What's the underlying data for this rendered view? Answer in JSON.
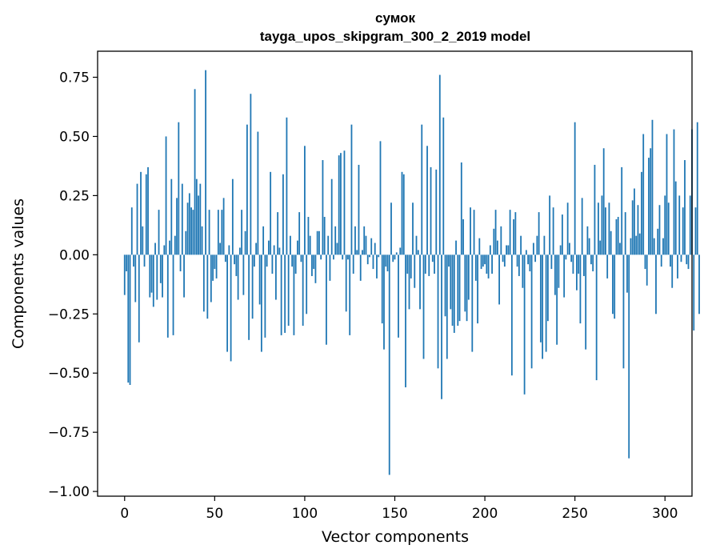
{
  "chart_data": {
    "type": "bar",
    "title": "сумок",
    "subtitle": "tayga_upos_skipgram_300_2_2019 model",
    "xlabel": "Vector components",
    "ylabel": "Components values",
    "xlim": [
      -15,
      315
    ],
    "ylim": [
      -1.02,
      0.86
    ],
    "xticks": [
      0,
      50,
      100,
      150,
      200,
      250,
      300
    ],
    "xtick_labels": [
      "0",
      "50",
      "100",
      "150",
      "200",
      "250",
      "300"
    ],
    "yticks": [
      -1.0,
      -0.75,
      -0.5,
      -0.25,
      0.0,
      0.25,
      0.5,
      0.75
    ],
    "ytick_labels": [
      "−1.00",
      "−0.75",
      "−0.50",
      "−0.25",
      "0.00",
      "0.25",
      "0.50",
      "0.75"
    ],
    "bar_color": "#1f77b4",
    "grid": false,
    "legend": "none",
    "values": [
      -0.17,
      -0.07,
      -0.54,
      -0.55,
      0.2,
      -0.05,
      -0.2,
      0.3,
      -0.37,
      0.35,
      0.12,
      -0.05,
      0.34,
      0.37,
      -0.18,
      -0.16,
      -0.22,
      0.05,
      -0.19,
      0.19,
      -0.12,
      -0.18,
      0.04,
      0.5,
      -0.35,
      0.06,
      0.32,
      -0.34,
      0.08,
      0.24,
      0.56,
      -0.07,
      0.3,
      -0.18,
      0.1,
      0.22,
      0.26,
      0.2,
      0.19,
      0.7,
      0.32,
      0.25,
      0.3,
      0.12,
      -0.24,
      0.78,
      -0.27,
      0.19,
      -0.2,
      -0.11,
      -0.06,
      -0.1,
      0.19,
      0.05,
      0.19,
      0.24,
      -0.03,
      -0.41,
      0.04,
      -0.45,
      0.32,
      -0.04,
      -0.09,
      -0.19,
      0.03,
      0.19,
      -0.17,
      0.1,
      0.55,
      -0.36,
      0.68,
      -0.27,
      -0.05,
      0.05,
      0.52,
      -0.21,
      -0.41,
      0.12,
      -0.35,
      -0.05,
      0.06,
      0.35,
      -0.08,
      0.04,
      -0.19,
      0.18,
      0.03,
      -0.34,
      0.34,
      -0.33,
      0.58,
      -0.3,
      0.08,
      -0.05,
      -0.34,
      -0.08,
      0.06,
      0.18,
      -0.03,
      -0.3,
      0.46,
      -0.25,
      0.16,
      0.08,
      -0.09,
      -0.06,
      -0.12,
      0.1,
      0.1,
      -0.02,
      0.4,
      0.16,
      -0.38,
      0.08,
      -0.11,
      0.32,
      -0.02,
      0.12,
      0.05,
      0.42,
      0.43,
      -0.02,
      0.44,
      -0.24,
      -0.02,
      -0.34,
      0.55,
      -0.08,
      0.12,
      0.02,
      0.38,
      -0.11,
      0.02,
      0.12,
      0.08,
      -0.04,
      -0.01,
      0.07,
      -0.06,
      0.05,
      -0.1,
      -0.01,
      0.48,
      -0.29,
      -0.4,
      -0.05,
      -0.07,
      -0.93,
      0.22,
      -0.03,
      -0.02,
      0.01,
      -0.35,
      0.03,
      0.35,
      0.34,
      -0.56,
      -0.08,
      -0.23,
      -0.1,
      0.22,
      -0.14,
      0.08,
      0.02,
      -0.23,
      0.55,
      -0.44,
      -0.08,
      0.46,
      -0.09,
      0.37,
      -0.03,
      -0.08,
      0.36,
      -0.48,
      0.76,
      -0.61,
      0.58,
      -0.26,
      -0.44,
      -0.05,
      -0.23,
      -0.3,
      -0.33,
      0.06,
      -0.3,
      -0.28,
      0.39,
      0.15,
      -0.24,
      -0.28,
      -0.19,
      0.2,
      -0.41,
      0.19,
      -0.11,
      -0.29,
      0.07,
      -0.06,
      -0.05,
      -0.04,
      -0.08,
      -0.1,
      0.04,
      -0.08,
      0.11,
      0.19,
      0.06,
      -0.21,
      0.12,
      -0.03,
      -0.05,
      0.04,
      0.04,
      0.19,
      -0.51,
      0.15,
      0.18,
      -0.05,
      -0.09,
      0.08,
      -0.14,
      -0.59,
      0.02,
      -0.04,
      -0.07,
      -0.48,
      0.05,
      -0.03,
      0.08,
      0.18,
      -0.37,
      -0.44,
      0.08,
      -0.41,
      -0.28,
      0.25,
      -0.06,
      0.2,
      -0.17,
      -0.38,
      -0.14,
      0.04,
      0.17,
      -0.18,
      -0.02,
      0.22,
      0.05,
      -0.03,
      -0.08,
      0.56,
      -0.15,
      -0.08,
      -0.29,
      0.24,
      -0.09,
      -0.4,
      0.12,
      0.07,
      -0.04,
      -0.07,
      0.38,
      -0.53,
      0.22,
      0.06,
      0.25,
      0.45,
      0.2,
      -0.1,
      0.22,
      0.1,
      -0.25,
      -0.27,
      0.15,
      0.16,
      0.05,
      0.37,
      -0.48,
      0.18,
      -0.16,
      -0.86,
      0.07,
      0.23,
      0.28,
      0.08,
      0.21,
      0.09,
      0.35,
      0.51,
      -0.06,
      -0.13,
      0.41,
      0.45,
      0.57,
      0.07,
      -0.25,
      0.11,
      0.21,
      -0.05,
      0.07,
      0.25,
      0.51,
      0.22,
      -0.05,
      -0.14,
      0.53,
      0.31,
      -0.1,
      0.25,
      -0.03,
      0.2,
      0.4,
      -0.04,
      -0.06,
      0.25,
      0.53,
      -0.32,
      0.2,
      0.56,
      -0.25
    ]
  }
}
